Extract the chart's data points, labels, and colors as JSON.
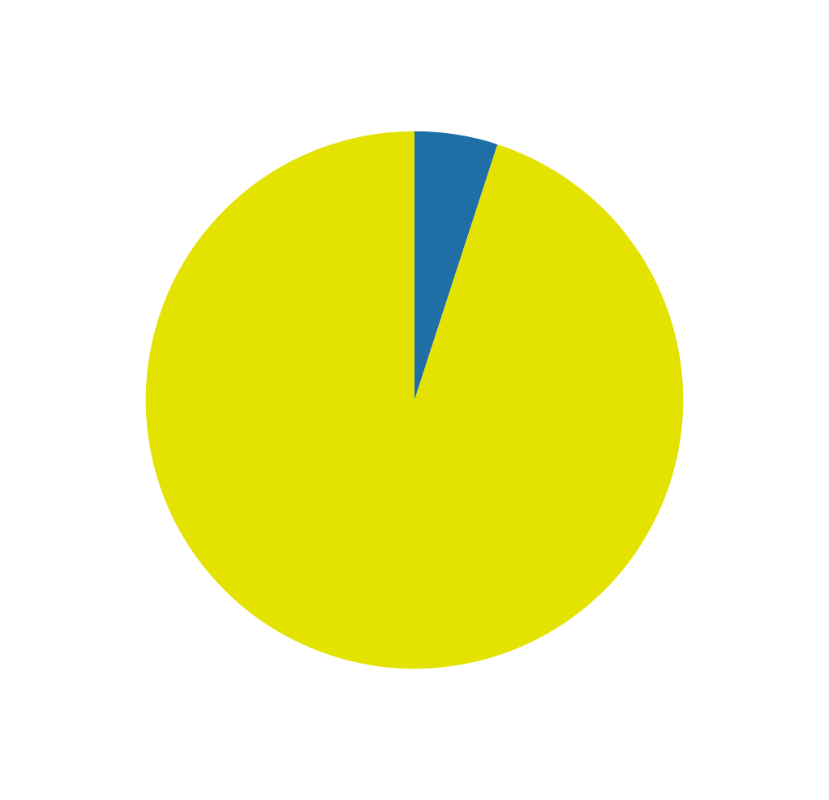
{
  "chart_data": {
    "type": "pie",
    "categories": [
      null,
      null
    ],
    "values": [
      5,
      95
    ],
    "colors": [
      "#1f6fa6",
      "#e3e200"
    ]
  }
}
